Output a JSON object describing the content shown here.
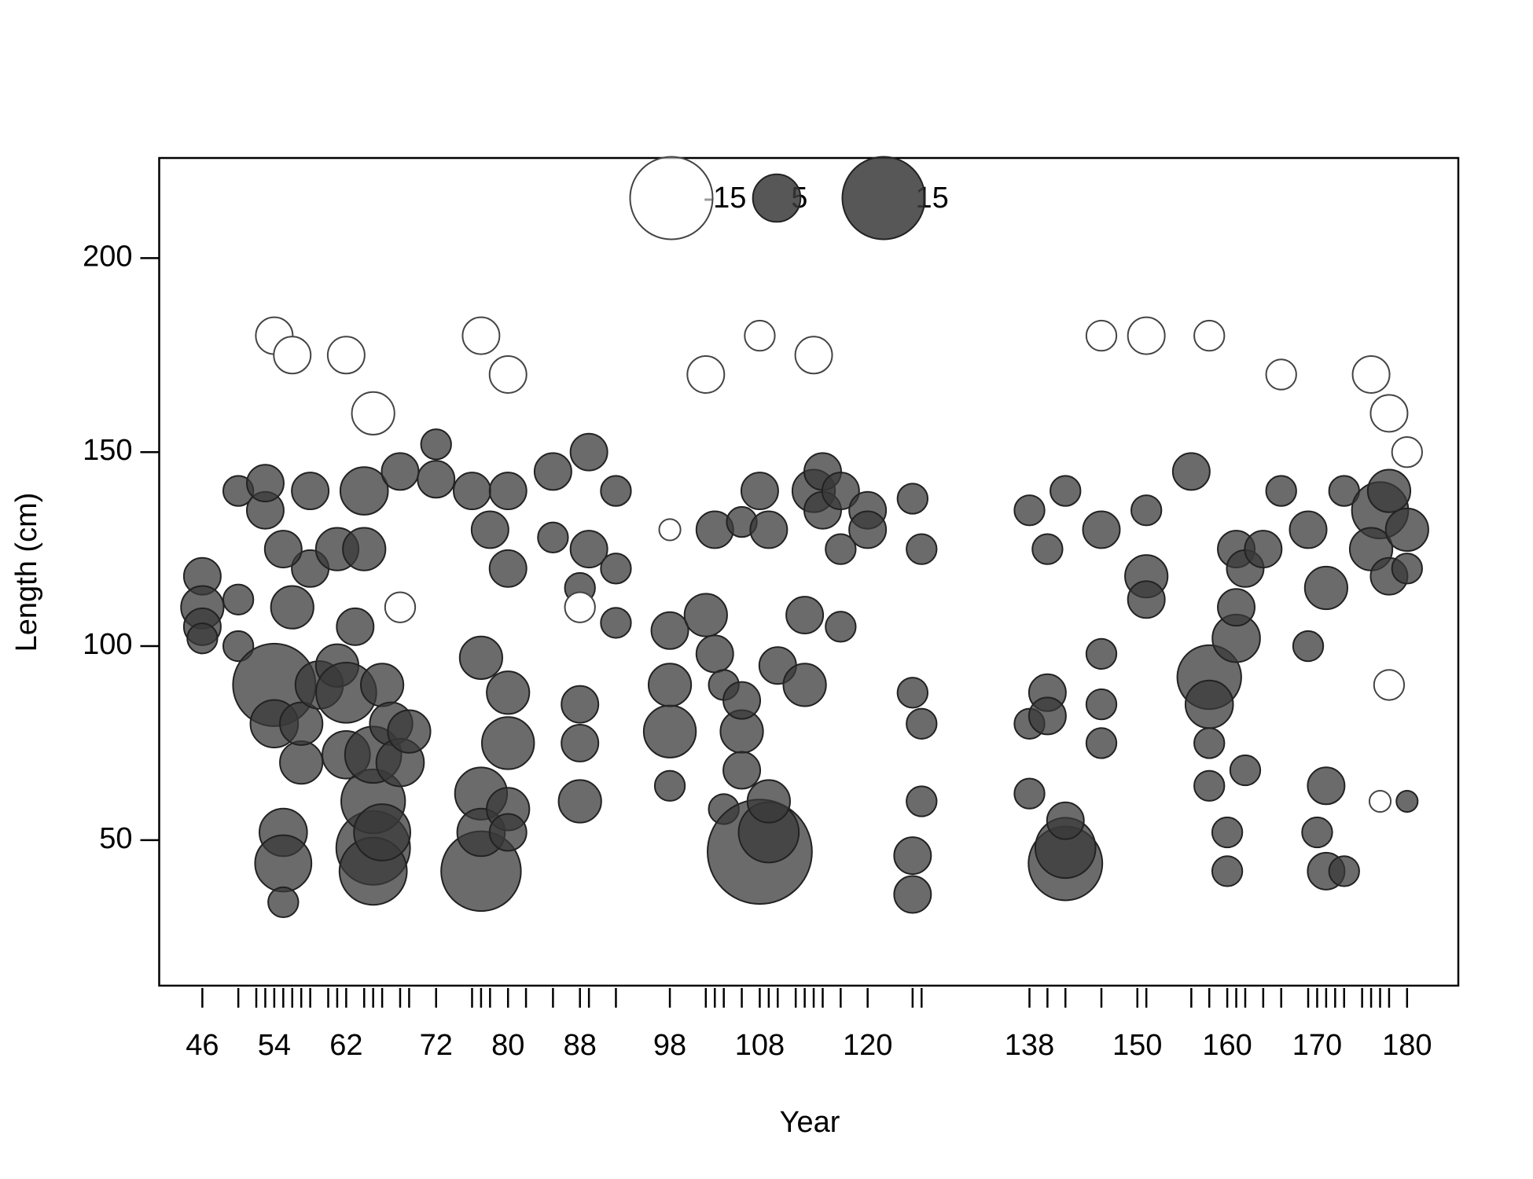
{
  "chart_data": {
    "type": "bubble",
    "xlabel": "Year",
    "ylabel": "Length (cm)",
    "xlim": [
      41.2,
      185.7
    ],
    "ylim": [
      12.5,
      225.8
    ],
    "xticks": [
      46,
      54,
      62,
      72,
      80,
      88,
      98,
      108,
      120,
      138,
      150,
      160,
      170,
      180
    ],
    "xminorticks": [
      50,
      52,
      53,
      55,
      56,
      57,
      58,
      60,
      61,
      64,
      65,
      66,
      68,
      69,
      76,
      77,
      78,
      82,
      85,
      89,
      92,
      102,
      103,
      104,
      106,
      109,
      110,
      112,
      113,
      114,
      115,
      117,
      125,
      126,
      140,
      142,
      146,
      151,
      156,
      158,
      161,
      162,
      164,
      166,
      169,
      171,
      172,
      173,
      175,
      176,
      177,
      178
    ],
    "yticks": [
      50,
      100,
      150,
      200
    ],
    "positive_color": "#3a3a3a",
    "negative_color": "#ffffff",
    "legend": {
      "values": [
        -15,
        5,
        15
      ]
    },
    "points": [
      [
        46,
        118,
        3
      ],
      [
        46,
        110,
        4
      ],
      [
        46,
        105,
        3
      ],
      [
        46,
        102,
        2
      ],
      [
        50,
        140,
        2
      ],
      [
        50,
        112,
        2
      ],
      [
        50,
        100,
        2
      ],
      [
        54,
        90,
        15
      ],
      [
        53,
        135,
        3
      ],
      [
        53,
        142,
        3
      ],
      [
        54,
        80,
        5
      ],
      [
        55,
        52,
        5
      ],
      [
        55,
        44,
        7
      ],
      [
        55,
        34,
        2
      ],
      [
        56,
        110,
        4
      ],
      [
        57,
        70,
        4
      ],
      [
        57,
        80,
        4
      ],
      [
        58,
        120,
        3
      ],
      [
        59,
        90,
        5
      ],
      [
        58,
        140,
        3
      ],
      [
        55,
        125,
        3
      ],
      [
        61,
        125,
        4
      ],
      [
        61,
        95,
        4
      ],
      [
        62,
        88,
        8
      ],
      [
        62,
        72,
        5
      ],
      [
        63,
        105,
        3
      ],
      [
        64,
        140,
        5
      ],
      [
        64,
        125,
        4
      ],
      [
        65,
        48,
        12
      ],
      [
        65,
        42,
        10
      ],
      [
        65,
        60,
        9
      ],
      [
        65,
        72,
        7
      ],
      [
        66,
        52,
        7
      ],
      [
        66,
        90,
        4
      ],
      [
        67,
        80,
        4
      ],
      [
        68,
        70,
        5
      ],
      [
        68,
        145,
        3
      ],
      [
        69,
        78,
        4
      ],
      [
        72,
        143,
        3
      ],
      [
        72,
        152,
        2
      ],
      [
        76,
        140,
        3
      ],
      [
        77,
        42,
        14
      ],
      [
        77,
        62,
        6
      ],
      [
        77,
        97,
        4
      ],
      [
        77,
        52,
        5
      ],
      [
        78,
        130,
        3
      ],
      [
        80,
        75,
        6
      ],
      [
        80,
        88,
        4
      ],
      [
        80,
        58,
        4
      ],
      [
        80,
        52,
        3
      ],
      [
        80,
        120,
        3
      ],
      [
        80,
        140,
        3
      ],
      [
        85,
        145,
        3
      ],
      [
        85,
        128,
        2
      ],
      [
        88,
        60,
        4
      ],
      [
        88,
        75,
        3
      ],
      [
        88,
        85,
        3
      ],
      [
        89,
        125,
        3
      ],
      [
        89,
        150,
        3
      ],
      [
        88,
        115,
        2
      ],
      [
        92,
        140,
        2
      ],
      [
        92,
        120,
        2
      ],
      [
        92,
        106,
        2
      ],
      [
        98,
        78,
        6
      ],
      [
        98,
        90,
        4
      ],
      [
        98,
        104,
        3
      ],
      [
        98,
        64,
        2
      ],
      [
        102,
        108,
        4
      ],
      [
        103,
        98,
        3
      ],
      [
        103,
        130,
        3
      ],
      [
        104,
        58,
        2
      ],
      [
        104,
        90,
        2
      ],
      [
        106,
        78,
        4
      ],
      [
        106,
        68,
        3
      ],
      [
        106,
        86,
        3
      ],
      [
        106,
        132,
        2
      ],
      [
        108,
        47,
        24
      ],
      [
        109,
        52,
        8
      ],
      [
        109,
        60,
        4
      ],
      [
        108,
        140,
        3
      ],
      [
        109,
        130,
        3
      ],
      [
        110,
        95,
        3
      ],
      [
        113,
        90,
        4
      ],
      [
        113,
        108,
        3
      ],
      [
        114,
        140,
        4
      ],
      [
        115,
        135,
        3
      ],
      [
        115,
        145,
        3
      ],
      [
        117,
        140,
        3
      ],
      [
        117,
        125,
        2
      ],
      [
        117,
        105,
        2
      ],
      [
        120,
        135,
        3
      ],
      [
        120,
        130,
        3
      ],
      [
        125,
        46,
        3
      ],
      [
        125,
        36,
        3
      ],
      [
        125,
        88,
        2
      ],
      [
        125,
        138,
        2
      ],
      [
        126,
        60,
        2
      ],
      [
        126,
        80,
        2
      ],
      [
        126,
        125,
        2
      ],
      [
        138,
        135,
        2
      ],
      [
        138,
        62,
        2
      ],
      [
        138,
        80,
        2
      ],
      [
        140,
        88,
        3
      ],
      [
        140,
        82,
        3
      ],
      [
        140,
        125,
        2
      ],
      [
        142,
        44,
        12
      ],
      [
        142,
        48,
        8
      ],
      [
        142,
        55,
        3
      ],
      [
        142,
        140,
        2
      ],
      [
        146,
        130,
        3
      ],
      [
        146,
        98,
        2
      ],
      [
        146,
        85,
        2
      ],
      [
        146,
        75,
        2
      ],
      [
        151,
        118,
        4
      ],
      [
        151,
        112,
        3
      ],
      [
        151,
        135,
        2
      ],
      [
        156,
        145,
        3
      ],
      [
        158,
        92,
        9
      ],
      [
        158,
        85,
        5
      ],
      [
        158,
        75,
        2
      ],
      [
        158,
        64,
        2
      ],
      [
        160,
        42,
        2
      ],
      [
        160,
        52,
        2
      ],
      [
        161,
        102,
        5
      ],
      [
        161,
        110,
        3
      ],
      [
        161,
        125,
        3
      ],
      [
        162,
        120,
        3
      ],
      [
        162,
        68,
        2
      ],
      [
        164,
        125,
        3
      ],
      [
        166,
        140,
        2
      ],
      [
        169,
        130,
        3
      ],
      [
        169,
        100,
        2
      ],
      [
        170,
        52,
        2
      ],
      [
        171,
        115,
        4
      ],
      [
        171,
        42,
        3
      ],
      [
        171,
        64,
        3
      ],
      [
        173,
        42,
        2
      ],
      [
        173,
        140,
        2
      ],
      [
        177,
        135,
        7
      ],
      [
        176,
        125,
        4
      ],
      [
        178,
        118,
        3
      ],
      [
        178,
        140,
        4
      ],
      [
        180,
        130,
        4
      ],
      [
        180,
        120,
        2
      ],
      [
        180,
        60,
        1
      ],
      [
        54,
        180,
        -3
      ],
      [
        56,
        175,
        -3
      ],
      [
        62,
        175,
        -3
      ],
      [
        65,
        160,
        -4
      ],
      [
        77,
        180,
        -3
      ],
      [
        80,
        170,
        -3
      ],
      [
        102,
        170,
        -3
      ],
      [
        108,
        180,
        -2
      ],
      [
        114,
        175,
        -3
      ],
      [
        151,
        180,
        -3
      ],
      [
        166,
        170,
        -2
      ],
      [
        176,
        170,
        -3
      ],
      [
        178,
        160,
        -3
      ],
      [
        180,
        150,
        -2
      ],
      [
        68,
        110,
        -2
      ],
      [
        88,
        110,
        -2
      ],
      [
        98,
        130,
        -1
      ],
      [
        178,
        90,
        -2
      ],
      [
        177,
        60,
        -1
      ],
      [
        146,
        180,
        -2
      ],
      [
        158,
        180,
        -2
      ]
    ]
  }
}
